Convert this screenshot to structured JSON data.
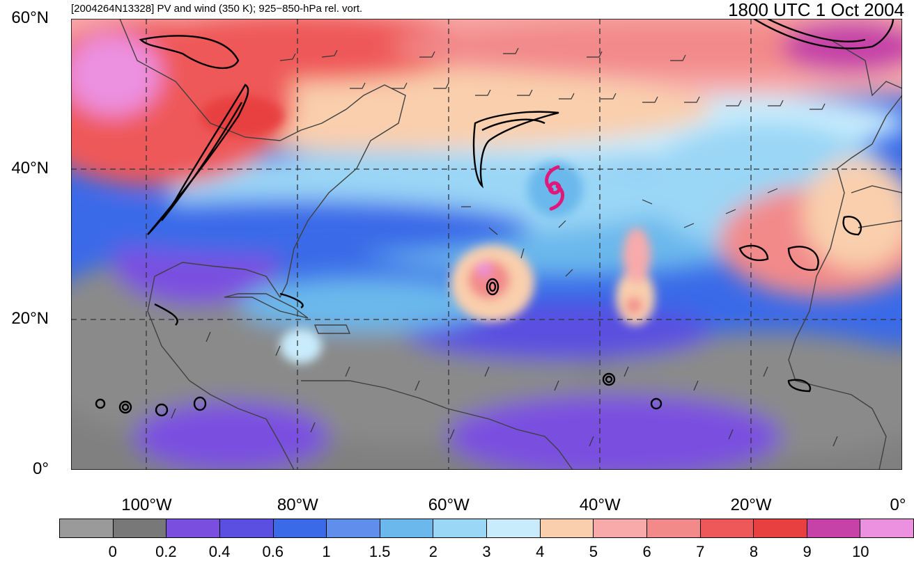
{
  "header": {
    "left": "[2004264N13328] PV and wind (350 K); 925−850-hPa rel. vort.",
    "right": "1800 UTC 1 Oct 2004"
  },
  "map": {
    "lon_range": [
      -110,
      0
    ],
    "lat_range": [
      0,
      60
    ],
    "lat_labels": [
      {
        "value": 60,
        "text": "60°N"
      },
      {
        "value": 40,
        "text": "40°N"
      },
      {
        "value": 20,
        "text": "20°N"
      },
      {
        "value": 0,
        "text": "0°"
      }
    ],
    "lon_labels": [
      {
        "value": -100,
        "text": "100°W"
      },
      {
        "value": -80,
        "text": "80°W"
      },
      {
        "value": -60,
        "text": "60°W"
      },
      {
        "value": -40,
        "text": "40°W"
      },
      {
        "value": -20,
        "text": "20°W"
      },
      {
        "value": 0,
        "text": "0°"
      }
    ],
    "storm_symbol": {
      "lon": -46,
      "lat": 37.5,
      "color": "#e0187a"
    }
  },
  "colorbar": {
    "colors": [
      "#9a9a9a",
      "#787878",
      "#7a4fe0",
      "#5a4fe0",
      "#3a6ae8",
      "#5f8eec",
      "#6ab8ec",
      "#9ad6f6",
      "#c8ecfc",
      "#f9cfad",
      "#f8aaaa",
      "#f28a8a",
      "#ef5858",
      "#e84040",
      "#c642a8",
      "#ec90e0"
    ],
    "labels": [
      "0",
      "0.2",
      "0.4",
      "0.6",
      "1",
      "1.5",
      "2",
      "3",
      "4",
      "5",
      "6",
      "7",
      "8",
      "9",
      "10"
    ]
  }
}
